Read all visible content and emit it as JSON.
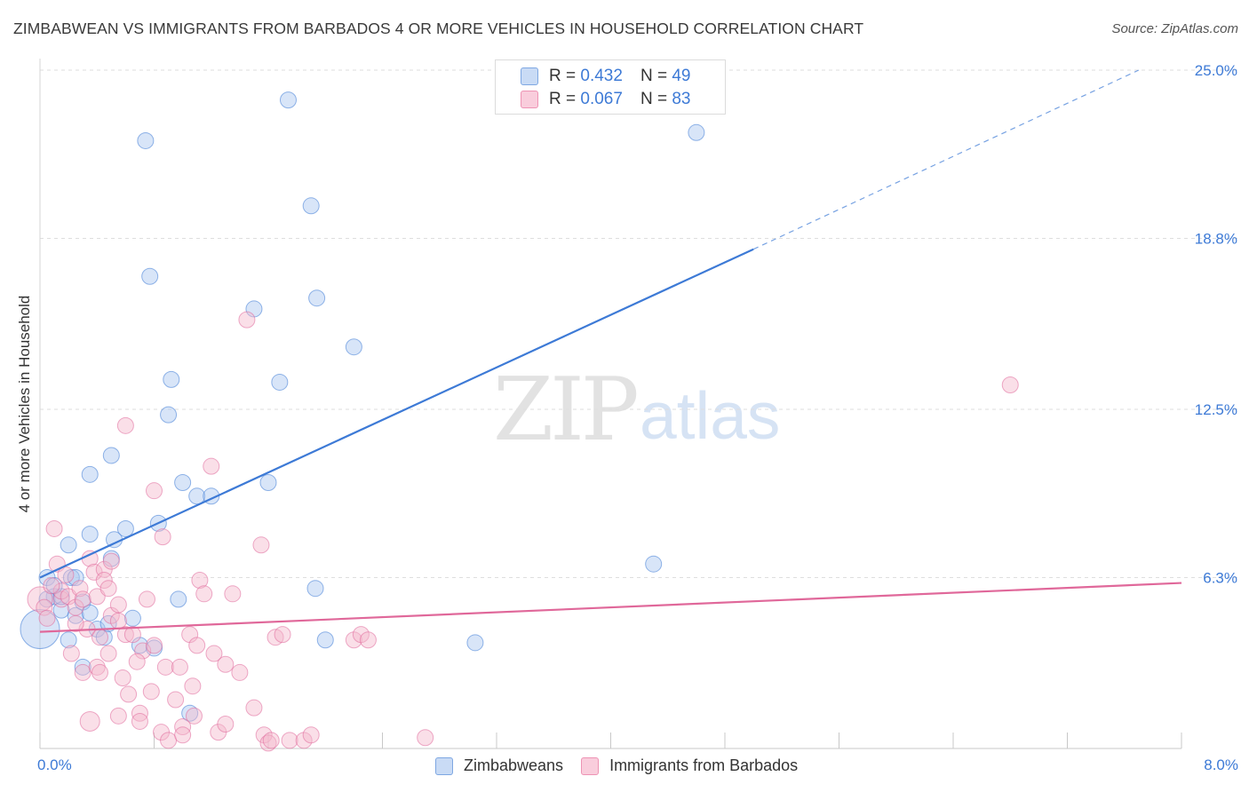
{
  "title": "ZIMBABWEAN VS IMMIGRANTS FROM BARBADOS 4 OR MORE VEHICLES IN HOUSEHOLD CORRELATION CHART",
  "source": "Source: ZipAtlas.com",
  "watermark": {
    "zip": "ZIP",
    "atlas": "atlas"
  },
  "legend_top": {
    "rows": [
      {
        "r_label": "R =",
        "r_value": "0.432",
        "n_label": "N =",
        "n_value": "49",
        "color": "#a9c6ef"
      },
      {
        "r_label": "R =",
        "r_value": "0.067",
        "n_label": "N =",
        "n_value": "83",
        "color": "#f5b8cc"
      }
    ]
  },
  "legend_bottom": {
    "items": [
      {
        "label": "Zimbabweans",
        "color": "#a9c6ef"
      },
      {
        "label": "Immigrants from Barbados",
        "color": "#f5b8cc"
      }
    ]
  },
  "chart_data": {
    "type": "scatter",
    "title": "ZIMBABWEAN VS IMMIGRANTS FROM BARBADOS 4 OR MORE VEHICLES IN HOUSEHOLD CORRELATION CHART",
    "xlabel": "",
    "ylabel": "4 or more Vehicles in Household",
    "xlim": [
      0,
      8
    ],
    "ylim": [
      0,
      25.0
    ],
    "x_tick_labels": [
      "0.0%",
      "8.0%"
    ],
    "y_ticks": [
      6.3,
      12.5,
      18.8,
      25.0
    ],
    "y_tick_labels": [
      "6.3%",
      "12.5%",
      "18.8%",
      "25.0%"
    ],
    "grid": true,
    "series": [
      {
        "name": "Zimbabweans",
        "color": "#3d7ad6",
        "fill": "#a9c6ef",
        "r": 0.432,
        "n": 49,
        "trend": {
          "x0": 0.0,
          "y0": 6.3,
          "x1": 5.0,
          "y1": 18.4,
          "dash_to_x": 7.7,
          "dash_to_y": 25.0
        },
        "points": [
          [
            0.0,
            4.4,
            22
          ],
          [
            0.05,
            6.3,
            9
          ],
          [
            0.1,
            5.6,
            9
          ],
          [
            0.15,
            5.1,
            9
          ],
          [
            0.2,
            7.5,
            9
          ],
          [
            0.22,
            6.3,
            9
          ],
          [
            0.25,
            4.9,
            9
          ],
          [
            0.3,
            3.0,
            9
          ],
          [
            0.35,
            7.9,
            9
          ],
          [
            0.35,
            10.1,
            9
          ],
          [
            0.4,
            4.4,
            9
          ],
          [
            0.45,
            4.1,
            9
          ],
          [
            0.48,
            4.6,
            9
          ],
          [
            0.5,
            7.0,
            9
          ],
          [
            0.5,
            10.8,
            9
          ],
          [
            0.52,
            7.7,
            9
          ],
          [
            0.6,
            8.1,
            9
          ],
          [
            0.65,
            4.8,
            9
          ],
          [
            0.7,
            3.8,
            9
          ],
          [
            0.74,
            22.4,
            9
          ],
          [
            0.77,
            17.4,
            9
          ],
          [
            0.8,
            3.7,
            9
          ],
          [
            0.83,
            8.3,
            9
          ],
          [
            0.9,
            12.3,
            9
          ],
          [
            0.92,
            13.6,
            9
          ],
          [
            0.97,
            5.5,
            9
          ],
          [
            1.0,
            9.8,
            9
          ],
          [
            1.05,
            1.3,
            9
          ],
          [
            1.1,
            9.3,
            9
          ],
          [
            1.2,
            9.3,
            9
          ],
          [
            1.5,
            16.2,
            9
          ],
          [
            1.6,
            9.8,
            9
          ],
          [
            1.68,
            13.5,
            9
          ],
          [
            1.74,
            23.9,
            9
          ],
          [
            1.9,
            20.0,
            9
          ],
          [
            1.93,
            5.9,
            9
          ],
          [
            1.94,
            16.6,
            9
          ],
          [
            2.0,
            4.0,
            9
          ],
          [
            2.2,
            14.8,
            9
          ],
          [
            3.05,
            3.9,
            9
          ],
          [
            4.3,
            6.8,
            9
          ],
          [
            4.6,
            22.7,
            9
          ],
          [
            0.05,
            5.5,
            9
          ],
          [
            0.15,
            5.6,
            9
          ],
          [
            0.25,
            6.3,
            9
          ],
          [
            0.3,
            5.4,
            9
          ],
          [
            0.1,
            6.0,
            9
          ],
          [
            0.35,
            5.0,
            9
          ],
          [
            0.2,
            4.0,
            9
          ]
        ]
      },
      {
        "name": "Immigrants from Barbados",
        "color": "#e0689a",
        "fill": "#f5b8cc",
        "r": 0.067,
        "n": 83,
        "trend": {
          "x0": 0.0,
          "y0": 4.3,
          "x1": 8.0,
          "y1": 6.1
        },
        "points": [
          [
            0.0,
            5.5,
            14
          ],
          [
            0.03,
            5.2,
            9
          ],
          [
            0.05,
            4.8,
            9
          ],
          [
            0.1,
            8.1,
            9
          ],
          [
            0.12,
            6.8,
            9
          ],
          [
            0.15,
            5.5,
            9
          ],
          [
            0.15,
            5.8,
            9
          ],
          [
            0.2,
            5.6,
            9
          ],
          [
            0.22,
            3.5,
            9
          ],
          [
            0.25,
            5.2,
            9
          ],
          [
            0.28,
            5.9,
            9
          ],
          [
            0.3,
            2.8,
            9
          ],
          [
            0.3,
            5.5,
            9
          ],
          [
            0.35,
            7.0,
            9
          ],
          [
            0.35,
            1.0,
            11
          ],
          [
            0.38,
            6.5,
            9
          ],
          [
            0.4,
            5.6,
            9
          ],
          [
            0.4,
            3.0,
            9
          ],
          [
            0.42,
            2.8,
            9
          ],
          [
            0.45,
            6.6,
            9
          ],
          [
            0.45,
            6.2,
            9
          ],
          [
            0.48,
            5.9,
            9
          ],
          [
            0.5,
            6.9,
            9
          ],
          [
            0.5,
            4.9,
            9
          ],
          [
            0.55,
            1.2,
            9
          ],
          [
            0.55,
            4.7,
            9
          ],
          [
            0.55,
            5.3,
            9
          ],
          [
            0.6,
            11.9,
            9
          ],
          [
            0.6,
            4.2,
            9
          ],
          [
            0.62,
            2.0,
            9
          ],
          [
            0.65,
            4.2,
            9
          ],
          [
            0.7,
            1.3,
            9
          ],
          [
            0.7,
            1.0,
            9
          ],
          [
            0.72,
            3.6,
            9
          ],
          [
            0.75,
            5.5,
            9
          ],
          [
            0.78,
            2.1,
            9
          ],
          [
            0.8,
            3.8,
            9
          ],
          [
            0.8,
            9.5,
            9
          ],
          [
            0.85,
            0.6,
            9
          ],
          [
            0.86,
            7.8,
            9
          ],
          [
            0.88,
            3.0,
            9
          ],
          [
            0.9,
            0.3,
            9
          ],
          [
            0.95,
            1.8,
            9
          ],
          [
            1.0,
            0.8,
            9
          ],
          [
            1.0,
            0.5,
            9
          ],
          [
            1.05,
            4.2,
            9
          ],
          [
            1.07,
            2.3,
            9
          ],
          [
            1.1,
            3.8,
            9
          ],
          [
            1.12,
            6.2,
            9
          ],
          [
            1.15,
            5.7,
            9
          ],
          [
            1.2,
            10.4,
            9
          ],
          [
            1.22,
            3.5,
            9
          ],
          [
            1.25,
            0.6,
            9
          ],
          [
            1.3,
            3.1,
            9
          ],
          [
            1.35,
            5.7,
            9
          ],
          [
            1.4,
            2.8,
            9
          ],
          [
            1.45,
            15.8,
            9
          ],
          [
            1.5,
            1.5,
            9
          ],
          [
            1.55,
            7.5,
            9
          ],
          [
            1.57,
            0.5,
            9
          ],
          [
            1.6,
            0.2,
            9
          ],
          [
            1.62,
            0.3,
            9
          ],
          [
            1.65,
            4.1,
            9
          ],
          [
            1.7,
            4.2,
            9
          ],
          [
            1.75,
            0.3,
            9
          ],
          [
            1.85,
            0.3,
            9
          ],
          [
            1.9,
            0.5,
            9
          ],
          [
            2.2,
            4.0,
            9
          ],
          [
            2.25,
            4.2,
            9
          ],
          [
            2.3,
            4.0,
            9
          ],
          [
            2.7,
            0.4,
            9
          ],
          [
            6.8,
            13.4,
            9
          ],
          [
            0.08,
            6.0,
            9
          ],
          [
            0.18,
            6.4,
            9
          ],
          [
            0.33,
            4.4,
            9
          ],
          [
            0.48,
            3.5,
            9
          ],
          [
            0.58,
            2.6,
            9
          ],
          [
            0.68,
            3.2,
            9
          ],
          [
            0.98,
            3.0,
            9
          ],
          [
            1.08,
            1.2,
            9
          ],
          [
            0.25,
            4.6,
            9
          ],
          [
            0.42,
            4.1,
            9
          ],
          [
            1.3,
            0.9,
            9
          ]
        ]
      }
    ]
  }
}
